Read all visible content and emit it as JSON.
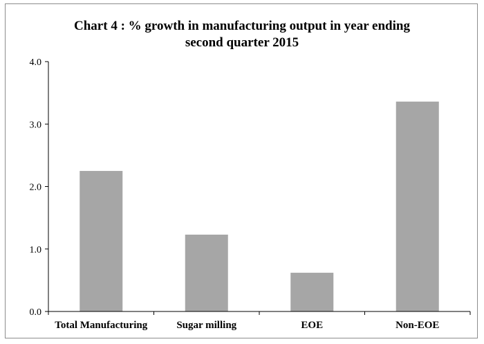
{
  "chart_data": {
    "type": "bar",
    "title": "Chart 4 : % growth in manufacturing output in  year ending\nsecond quarter 2015",
    "xlabel": "",
    "ylabel": "",
    "categories": [
      "Total Manufacturing",
      "Sugar milling",
      "EOE",
      "Non-EOE"
    ],
    "values": [
      2.25,
      1.23,
      0.62,
      3.36
    ],
    "ylim": [
      0,
      4
    ],
    "yticks": [
      "0.0",
      "1.0",
      "2.0",
      "3.0",
      "4.0"
    ],
    "grid": false,
    "legend": "none",
    "bar_color": "#a6a6a6",
    "axis_color": "#000000"
  }
}
